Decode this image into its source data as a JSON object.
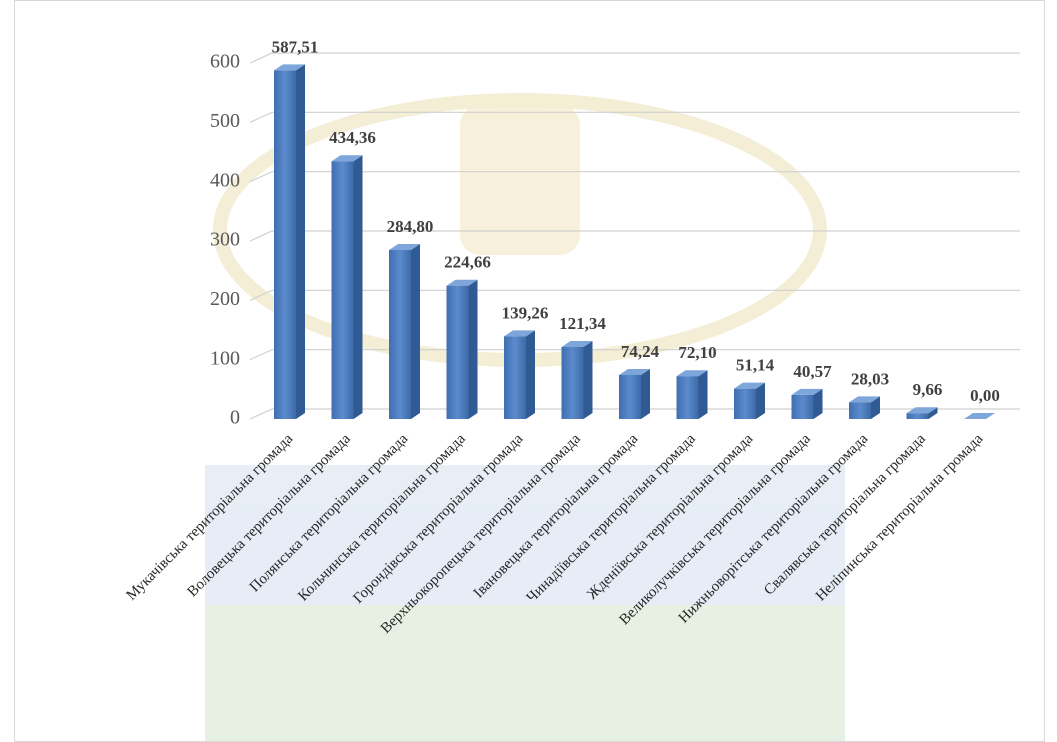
{
  "chart_data": {
    "type": "bar",
    "categories": [
      "Мукачівська територіальна громада",
      "Воловецька територіальна громада",
      "Полянська територіальна громада",
      "Кольчинська територіальна громада",
      "Горондівська територіальна громада",
      "Верхньокоропецька територіальна громада",
      "Івановецька територіальна громада",
      "Чинадіївська територіальна громада",
      "Жденіївська територіальна громада",
      "Великолучківська територіальна громада",
      "Нижньоворітська територіальна громада",
      "Свалявська територіальна громада",
      "Неліпинська територіальна громада"
    ],
    "values": [
      587.51,
      434.36,
      284.8,
      224.66,
      139.26,
      121.34,
      74.24,
      72.1,
      51.14,
      40.57,
      28.03,
      9.66,
      0
    ],
    "value_labels": [
      "587,51",
      "434,36",
      "284,80",
      "224,66",
      "139,26",
      "121,34",
      "74,24",
      "72,10",
      "51,14",
      "40,57",
      "28,03",
      "9,66",
      "0,00"
    ],
    "color": "#4f7fc0",
    "ylim": [
      0,
      600
    ],
    "yticks": [
      0,
      100,
      200,
      300,
      400,
      500,
      600
    ],
    "grid": true
  }
}
